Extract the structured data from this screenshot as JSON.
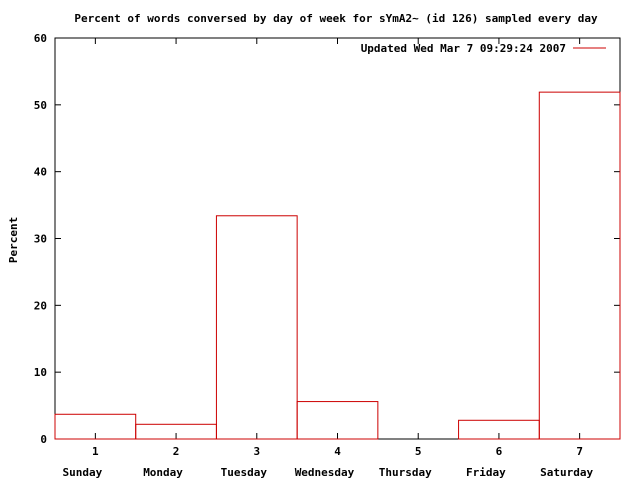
{
  "chart_data": {
    "type": "bar",
    "title": "Percent of words conversed by day of week for sYmA2~ (id 126) sampled every day",
    "xlabel": "",
    "ylabel": "Percent",
    "ylim": [
      0,
      60
    ],
    "yticks": [
      0,
      10,
      20,
      30,
      40,
      50,
      60
    ],
    "xlim": [
      0.5,
      7.5
    ],
    "x": [
      1,
      2,
      3,
      4,
      5,
      6,
      7
    ],
    "xtick_labels": [
      "1",
      "2",
      "3",
      "4",
      "5",
      "6",
      "7"
    ],
    "day_labels": [
      "Sunday",
      "Monday",
      "Tuesday",
      "Wednesday",
      "Thursday",
      "Friday",
      "Saturday"
    ],
    "series": [
      {
        "name": "Updated Wed Mar  7 09:29:24 2007",
        "values": [
          3.7,
          2.2,
          33.4,
          5.6,
          0,
          2.8,
          51.9
        ],
        "color": "#cc0000"
      }
    ],
    "legend_position": "top-right",
    "grid": false
  }
}
